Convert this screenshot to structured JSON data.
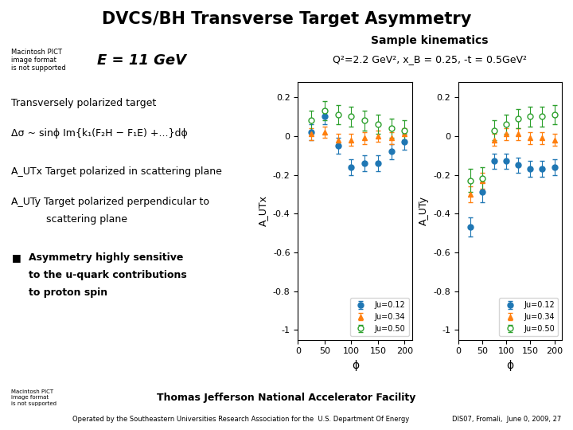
{
  "title": "DVCS/BH Transverse Target Asymmetry",
  "annotations": [
    {
      "text": "Macintosh PICT\nimage format\nis not supported"
    },
    {
      "text": "E = 11 GeV"
    },
    {
      "text": "Sample kinematics"
    },
    {
      "text": "Q²=2.2 GeV², x_B = 0.25, -t = 0.5GeV²"
    },
    {
      "text": "Transversely polarized target"
    },
    {
      "text": "Δσ ~ sinϕ Im{k₁(F₂H − F₁E) +...}dϕ"
    },
    {
      "text": "A_UTx Target polarized in scattering plane"
    },
    {
      "text": "A_UTy Target polarized perpendicular to"
    },
    {
      "text": "scattering plane"
    },
    {
      "text": "■"
    },
    {
      "text": "Asymmetry highly sensitive"
    },
    {
      "text": "to the u-quark contributions"
    },
    {
      "text": "to proton spin"
    },
    {
      "text": "Thomas Jefferson National Accelerator Facility"
    },
    {
      "text": "Operated by the Southeastern Universities Research Association for the  U.S. Department Of Energy"
    },
    {
      "text": "DIS07, Fromali,  June 0, 2009, 27"
    },
    {
      "text": "Macintosh PICT\nimage format\nis not supported"
    }
  ],
  "chart_data": [
    {
      "type": "scatter",
      "x_label": "ϕ",
      "y_label": "A_UTx",
      "x": [
        25,
        50,
        75,
        100,
        125,
        150,
        175,
        200
      ],
      "series": [
        {
          "name": "Ju=0.12",
          "marker": "filled_circle",
          "values": [
            0.02,
            0.1,
            -0.05,
            -0.16,
            -0.14,
            -0.14,
            -0.08,
            -0.03
          ],
          "yerr": [
            0.04,
            0.04,
            0.04,
            0.04,
            0.04,
            0.04,
            0.04,
            0.04
          ]
        },
        {
          "name": "Ju=0.34",
          "marker": "filled_triangle",
          "values": [
            0.01,
            0.02,
            -0.02,
            -0.02,
            -0.01,
            0.0,
            -0.01,
            0.01
          ],
          "yerr": [
            0.03,
            0.03,
            0.03,
            0.03,
            0.03,
            0.03,
            0.03,
            0.03
          ]
        },
        {
          "name": "Ju=0.50",
          "marker": "open_circle",
          "values": [
            0.08,
            0.13,
            0.11,
            0.1,
            0.08,
            0.06,
            0.04,
            0.03
          ],
          "yerr": [
            0.05,
            0.05,
            0.05,
            0.05,
            0.05,
            0.05,
            0.05,
            0.05
          ]
        }
      ],
      "xlim": [
        0,
        215
      ],
      "ylim": [
        -1.05,
        0.28
      ],
      "xticks": [
        0,
        50,
        100,
        150,
        200
      ],
      "yticks": [
        {
          "value": -1.0,
          "label": "-1"
        },
        -0.8,
        -0.6,
        -0.4,
        -0.2,
        {
          "value": 0.0,
          "label": "0"
        },
        0.2
      ],
      "grid": false,
      "legend": "lower right"
    },
    {
      "type": "scatter",
      "x_label": "ϕ",
      "y_label": "A_UTy",
      "x": [
        25,
        50,
        75,
        100,
        125,
        150,
        175,
        200
      ],
      "series": [
        {
          "name": "Ju=0.12",
          "marker": "filled_circle",
          "values": [
            -0.47,
            -0.29,
            -0.13,
            -0.13,
            -0.15,
            -0.17,
            -0.17,
            -0.16
          ],
          "yerr": [
            0.05,
            0.05,
            0.04,
            0.04,
            0.04,
            0.04,
            0.04,
            0.04
          ]
        },
        {
          "name": "Ju=0.34",
          "marker": "filled_triangle",
          "values": [
            -0.3,
            -0.23,
            -0.02,
            0.01,
            0.01,
            -0.01,
            -0.01,
            -0.02
          ],
          "yerr": [
            0.04,
            0.04,
            0.03,
            0.03,
            0.03,
            0.03,
            0.03,
            0.03
          ]
        },
        {
          "name": "Ju=0.50",
          "marker": "open_circle",
          "values": [
            -0.23,
            -0.22,
            0.03,
            0.06,
            0.09,
            0.1,
            0.1,
            0.11
          ],
          "yerr": [
            0.06,
            0.06,
            0.05,
            0.05,
            0.05,
            0.05,
            0.05,
            0.05
          ]
        }
      ],
      "xlim": [
        0,
        215
      ],
      "ylim": [
        -1.05,
        0.28
      ],
      "xticks": [
        0,
        50,
        100,
        150,
        200
      ],
      "yticks": [
        {
          "value": -1.0,
          "label": "-1"
        },
        -0.8,
        -0.6,
        -0.4,
        -0.2,
        {
          "value": 0.0,
          "label": "0"
        },
        0.2
      ],
      "grid": false,
      "legend": "lower right"
    }
  ]
}
